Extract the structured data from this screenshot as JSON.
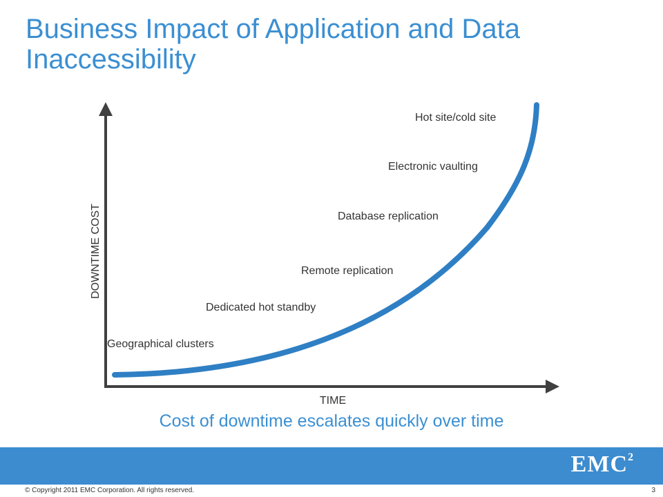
{
  "slide": {
    "title_line1": "Business Impact of Application and Data",
    "title_line2": "Inaccessibility",
    "subtitle": "Cost of downtime escalates quickly over time",
    "copyright": "© Copyright 2011 EMC Corporation. All rights reserved.",
    "page_number": "3",
    "logo_text": "EMC",
    "logo_superscript": "2"
  },
  "diagram": {
    "x_axis_label": "TIME",
    "y_axis_label": "DOWNTIME COST",
    "curve_color": "#3b8fd2",
    "axis_color": "#404040",
    "points": [
      "Geographical clusters",
      "Dedicated hot standby",
      "Remote replication",
      "Database replication",
      "Electronic vaulting",
      "Hot site/cold site"
    ]
  },
  "colors": {
    "title": "#3b8fd2",
    "band": "#3c8ccf"
  }
}
